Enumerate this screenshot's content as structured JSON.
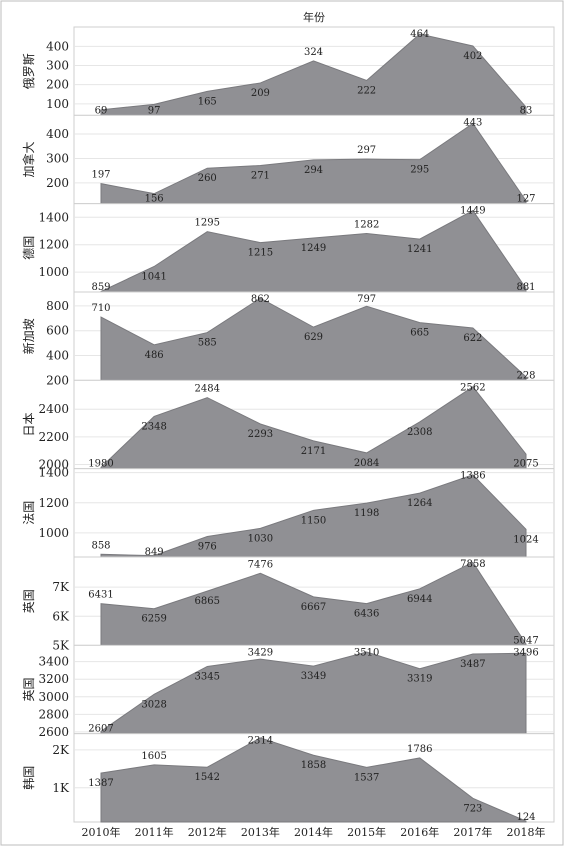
{
  "chart_data": {
    "type": "area",
    "title": "年份",
    "categories": [
      "2010年",
      "2011年",
      "2012年",
      "2013年",
      "2014年",
      "2015年",
      "2016年",
      "2017年",
      "2018年"
    ],
    "panels": [
      {
        "name": "俄罗斯",
        "values": [
          69,
          97,
          165,
          209,
          324,
          222,
          464,
          402,
          83
        ],
        "labels": [
          "69",
          "97",
          "165",
          "209",
          "324",
          "222",
          "464",
          "402",
          "83"
        ],
        "ylim": [
          40,
          480
        ],
        "ticks": [
          100,
          200,
          300,
          400
        ],
        "tick_labels": [
          "100",
          "200",
          "300",
          "400"
        ]
      },
      {
        "name": "加拿大",
        "values": [
          197,
          156,
          260,
          271,
          294,
          297,
          295,
          443,
          127
        ],
        "labels": [
          "197",
          "156",
          "260",
          "271",
          "294",
          "297",
          "295",
          "443",
          "127"
        ],
        "ylim": [
          115,
          460
        ],
        "ticks": [
          200,
          300,
          400
        ],
        "tick_labels": [
          "200",
          "300",
          "400"
        ]
      },
      {
        "name": "德国",
        "values": [
          859,
          1041,
          1295,
          1215,
          1249,
          1282,
          1241,
          1449,
          881
        ],
        "labels": [
          "859",
          "1041",
          "1295",
          "1215",
          "1249",
          "1282",
          "1241",
          "1449",
          "881"
        ],
        "ylim": [
          855,
          1470
        ],
        "ticks": [
          1000,
          1200,
          1400
        ],
        "tick_labels": [
          "1000",
          "1200",
          "1400"
        ]
      },
      {
        "name": "新加坡",
        "values": [
          710,
          486,
          585,
          862,
          629,
          797,
          665,
          622,
          228
        ],
        "labels": [
          "710",
          "486",
          "585",
          "862",
          "629",
          "797",
          "665",
          "622",
          "228"
        ],
        "ylim": [
          200,
          880
        ],
        "ticks": [
          200,
          400,
          600,
          800
        ],
        "tick_labels": [
          "200",
          "400",
          "600",
          "800"
        ]
      },
      {
        "name": "日本",
        "values": [
          1980,
          2348,
          2484,
          2293,
          2171,
          2084,
          2308,
          2562,
          2075
        ],
        "labels": [
          "1980",
          "2348",
          "2484",
          "2293",
          "2171",
          "2084",
          "2308",
          "2562",
          "2075"
        ],
        "ylim": [
          1970,
          2580
        ],
        "ticks": [
          2000,
          2200,
          2400
        ],
        "tick_labels": [
          "2000",
          "2200",
          "2400"
        ]
      },
      {
        "name": "法国",
        "values": [
          858,
          849,
          976,
          1030,
          1150,
          1198,
          1264,
          1386,
          1024
        ],
        "labels": [
          "858",
          "849",
          "976",
          "1030",
          "1150",
          "1198",
          "1264",
          "1386",
          "1024"
        ],
        "ylim": [
          840,
          1400
        ],
        "ticks": [
          1000,
          1200,
          1400
        ],
        "tick_labels": [
          "1000",
          "1200",
          "1400"
        ]
      },
      {
        "name": "英国",
        "values": [
          6431,
          6259,
          6865,
          7476,
          6667,
          6436,
          6944,
          7858,
          5047
        ],
        "labels": [
          "6431",
          "6259",
          "6865",
          "7476",
          "6667",
          "6436",
          "6944",
          "7858",
          "5047"
        ],
        "ylim": [
          5000,
          7900
        ],
        "ticks": [
          5000,
          6000,
          7000
        ],
        "tick_labels": [
          "5K",
          "6K",
          "7K"
        ]
      },
      {
        "name": "英国",
        "values": [
          2607,
          3028,
          3345,
          3429,
          3349,
          3510,
          3319,
          3487,
          3496
        ],
        "labels": [
          "2607",
          "3028",
          "3345",
          "3429",
          "3349",
          "3510",
          "3319",
          "3487",
          "3496"
        ],
        "ylim": [
          2580,
          3540
        ],
        "ticks": [
          2600,
          2800,
          3000,
          3200,
          3400
        ],
        "tick_labels": [
          "2600",
          "2800",
          "3000",
          "3200",
          "3400"
        ]
      },
      {
        "name": "韩国",
        "values": [
          1387,
          1605,
          1542,
          2314,
          1858,
          1537,
          1786,
          723,
          124
        ],
        "labels": [
          "1387",
          "1605",
          "1542",
          "2314",
          "1858",
          "1537",
          "1786",
          "723",
          "124"
        ],
        "ylim": [
          100,
          2320
        ],
        "ticks": [
          1000,
          2000
        ],
        "tick_labels": [
          "1K",
          "2K"
        ]
      }
    ],
    "grid": true,
    "legend": "none"
  }
}
